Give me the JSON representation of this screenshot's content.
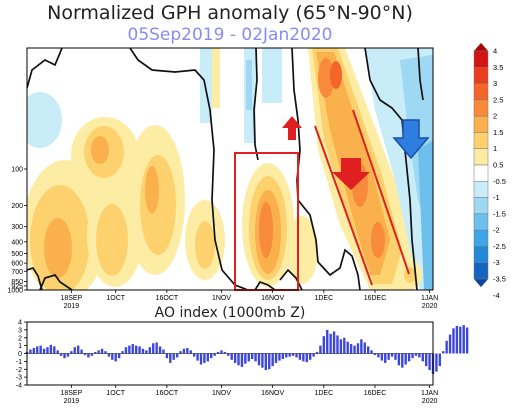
{
  "chart_data": [
    {
      "type": "heatmap",
      "title": "Normalized GPH anomaly (65°N-90°N)",
      "subtitle": "05Sep2019 - 02Jan2020",
      "x_ticks": [
        {
          "date": "2019-09-18",
          "label": "18SEP",
          "sub": "2019"
        },
        {
          "date": "2019-10-01",
          "label": "1OCT",
          "sub": ""
        },
        {
          "date": "2019-10-16",
          "label": "16OCT",
          "sub": ""
        },
        {
          "date": "2019-11-01",
          "label": "1NOV",
          "sub": ""
        },
        {
          "date": "2019-11-16",
          "label": "16NOV",
          "sub": ""
        },
        {
          "date": "2019-12-01",
          "label": "1DEC",
          "sub": ""
        },
        {
          "date": "2019-12-16",
          "label": "16DEC",
          "sub": ""
        },
        {
          "date": "2020-01-01",
          "label": "1JAN",
          "sub": "2020"
        }
      ],
      "x_range": [
        "2019-09-05",
        "2020-01-02"
      ],
      "y_ticks": [
        "100",
        "200",
        "300",
        "400",
        "500",
        "600",
        "700",
        "850",
        "925",
        "1000"
      ],
      "y_scale": "log",
      "y_range": [
        10,
        1000
      ],
      "colorbar": {
        "levels": [
          "4",
          "3.5",
          "3",
          "2.5",
          "2",
          "1.5",
          "1",
          "0.5",
          "-0.5",
          "-1",
          "-1.5",
          "-2",
          "-2.5",
          "-3",
          "-3.5",
          "-4"
        ],
        "colors": [
          "#b40000",
          "#d21414",
          "#eb3c1e",
          "#f56428",
          "#f88a3c",
          "#fbb04e",
          "#fdd26e",
          "#fdeda4",
          "#ffffff",
          "#c8ecf8",
          "#9ed8f2",
          "#6ec0ec",
          "#3ea6e6",
          "#2288d8",
          "#1464c0",
          "#0a46a0"
        ]
      },
      "annotation_colors": {
        "box": "#e02020",
        "arrow_up": "#e02020",
        "arrow_down_red": "#e02020",
        "arrow_down_blue": "#2e7ee0",
        "lines": "#e02020",
        "contour": "#111111"
      }
    },
    {
      "type": "bar",
      "title": "AO index (1000mb Z)",
      "x_range": [
        "2019-09-05",
        "2020-01-02"
      ],
      "ylim": [
        -4,
        4
      ],
      "y_ticks": [
        "4",
        "3",
        "2",
        "1",
        "0",
        "-1",
        "-2",
        "-3",
        "-4"
      ],
      "x_ticks": [
        {
          "date": "2019-09-18",
          "label": "18SEP",
          "sub": "2019"
        },
        {
          "date": "2019-10-01",
          "label": "1OCT",
          "sub": ""
        },
        {
          "date": "2019-10-16",
          "label": "16OCT",
          "sub": ""
        },
        {
          "date": "2019-11-01",
          "label": "1NOV",
          "sub": ""
        },
        {
          "date": "2019-11-16",
          "label": "16NOV",
          "sub": ""
        },
        {
          "date": "2019-12-01",
          "label": "1DEC",
          "sub": ""
        },
        {
          "date": "2019-12-16",
          "label": "16DEC",
          "sub": ""
        },
        {
          "date": "2020-01-01",
          "label": "1JAN",
          "sub": "2020"
        }
      ],
      "bar_color": "#3c46dc",
      "start_date": "2019-09-05",
      "values": [
        0.2,
        0.5,
        0.7,
        0.9,
        1.0,
        0.6,
        0.8,
        1.1,
        0.9,
        0.4,
        -0.3,
        -0.6,
        -0.4,
        0.3,
        0.8,
        1.0,
        0.5,
        -0.2,
        -0.5,
        -0.3,
        0.2,
        0.4,
        0.6,
        0.3,
        -0.4,
        -0.8,
        -1.0,
        -0.6,
        0.3,
        0.8,
        1.0,
        1.2,
        1.0,
        0.9,
        0.6,
        0.4,
        0.8,
        1.3,
        1.4,
        0.9,
        0.5,
        -0.6,
        -1.2,
        -0.8,
        -0.5,
        0.3,
        0.6,
        0.7,
        0.4,
        -0.4,
        -0.9,
        -1.4,
        -1.2,
        -1.0,
        -0.6,
        -0.3,
        0.2,
        0.4,
        0.2,
        -0.3,
        -0.8,
        -1.2,
        -1.5,
        -1.7,
        -1.3,
        -1.0,
        -0.7,
        -1.0,
        -1.5,
        -1.8,
        -2.1,
        -2.0,
        -1.6,
        -1.2,
        -0.9,
        -0.7,
        -0.5,
        -0.4,
        -0.3,
        -0.5,
        -0.8,
        -1.0,
        -1.1,
        -0.8,
        -0.4,
        0.2,
        1.0,
        2.2,
        3.0,
        2.5,
        2.8,
        2.3,
        1.8,
        2.0,
        1.5,
        1.2,
        1.0,
        1.3,
        1.8,
        1.4,
        0.9,
        0.4,
        -0.2,
        -0.5,
        -0.9,
        -1.2,
        -0.8,
        -0.4,
        -0.8,
        -1.5,
        -1.8,
        -1.4,
        -1.0,
        -0.6,
        -0.3,
        -0.5,
        -1.0,
        -1.6,
        -2.1,
        -2.6,
        -2.3,
        -1.6,
        0.3,
        1.6,
        2.4,
        3.2,
        3.5,
        3.4,
        3.6,
        3.3
      ]
    }
  ]
}
